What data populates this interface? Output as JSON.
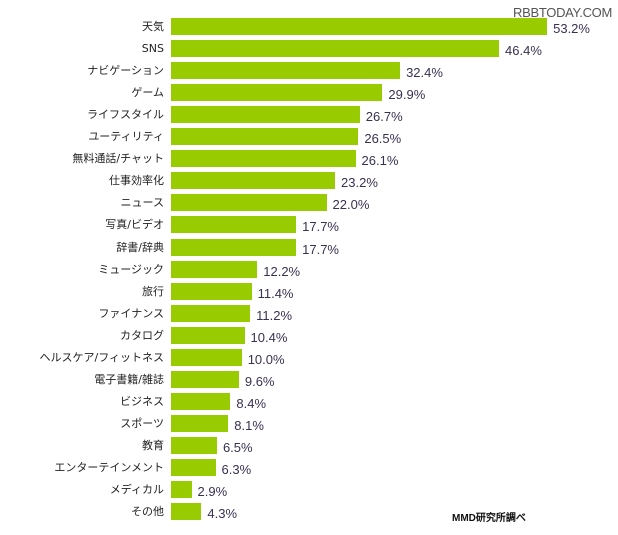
{
  "watermark": "RBBTODAY.COM",
  "source": "MMD研究所調べ",
  "chart_data": {
    "type": "bar",
    "orientation": "horizontal",
    "title": "",
    "xlabel": "",
    "ylabel": "",
    "unit": "%",
    "bar_color": "#99cc00",
    "grid": false,
    "categories": [
      "天気",
      "SNS",
      "ナビゲーション",
      "ゲーム",
      "ライフスタイル",
      "ユーティリティ",
      "無料通話/チャット",
      "仕事効率化",
      "ニュース",
      "写真/ビデオ",
      "辞書/辞典",
      "ミュージック",
      "旅行",
      "ファイナンス",
      "カタログ",
      "ヘルスケア/フィットネス",
      "電子書籍/雑誌",
      "ビジネス",
      "スポーツ",
      "教育",
      "エンターテインメント",
      "メディカル",
      "その他"
    ],
    "values": [
      53.2,
      46.4,
      32.4,
      29.9,
      26.7,
      26.5,
      26.1,
      23.2,
      22.0,
      17.7,
      17.7,
      12.2,
      11.4,
      11.2,
      10.4,
      10.0,
      9.6,
      8.4,
      8.1,
      6.5,
      6.3,
      2.9,
      4.3
    ],
    "value_labels": [
      "53.2%",
      "46.4%",
      "32.4%",
      "29.9%",
      "26.7%",
      "26.5%",
      "26.1%",
      "23.2%",
      "22.0%",
      "17.7%",
      "17.7%",
      "12.2%",
      "11.4%",
      "11.2%",
      "10.4%",
      "10.0%",
      "9.6%",
      "8.4%",
      "8.1%",
      "6.5%",
      "6.3%",
      "2.9%",
      "4.3%"
    ]
  }
}
